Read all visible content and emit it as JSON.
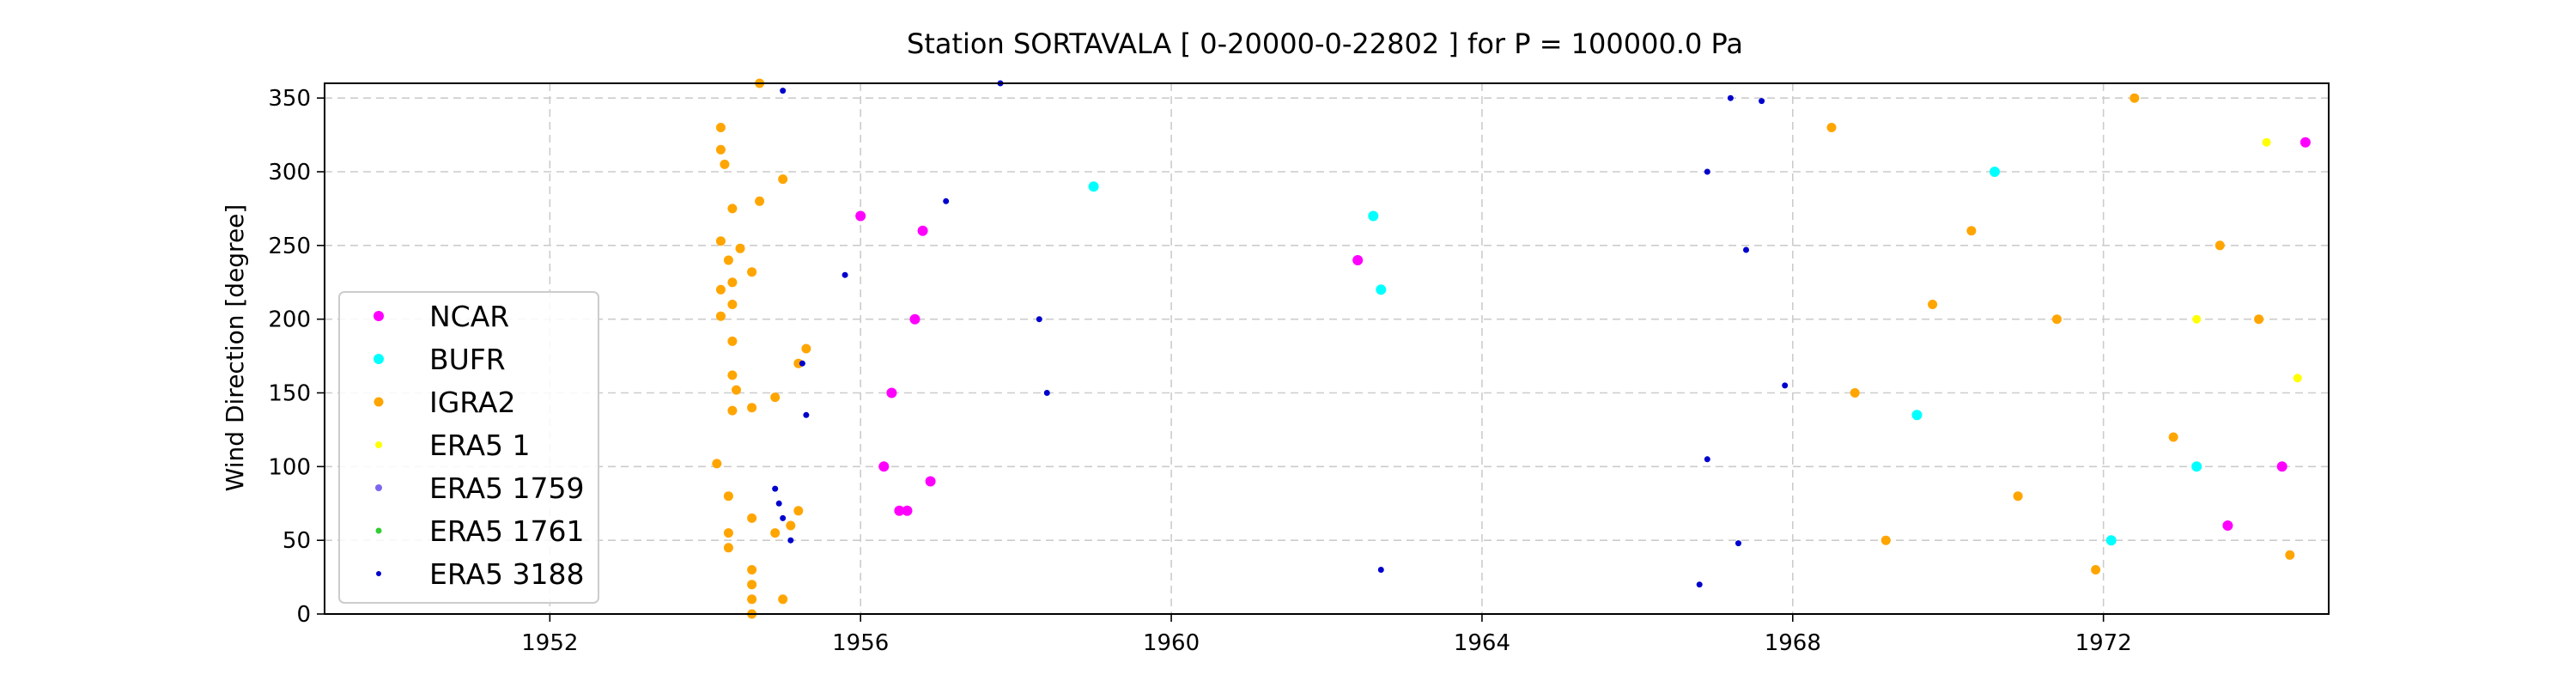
{
  "chart_data": {
    "type": "scatter",
    "title": "Station  SORTAVALA [ 0-20000-0-22802 ]  for P = 100000.0 Pa",
    "xlabel": "",
    "ylabel": "Wind Direction [degree]",
    "xlim": [
      1949.1,
      1974.9
    ],
    "ylim": [
      0,
      360
    ],
    "xticks": [
      1952,
      1956,
      1960,
      1964,
      1968,
      1972
    ],
    "yticks": [
      0,
      50,
      100,
      150,
      200,
      250,
      300,
      350
    ],
    "grid": true,
    "legend_position": "lower-left",
    "series": [
      {
        "name": "NCAR",
        "color": "#ff00ff",
        "points": [
          [
            1956.0,
            270
          ],
          [
            1956.3,
            100
          ],
          [
            1956.4,
            150
          ],
          [
            1956.5,
            70
          ],
          [
            1956.6,
            70
          ],
          [
            1956.7,
            200
          ],
          [
            1956.8,
            260
          ],
          [
            1956.9,
            90
          ],
          [
            1962.4,
            240
          ],
          [
            1973.6,
            60
          ],
          [
            1974.3,
            100
          ],
          [
            1974.6,
            320
          ]
        ]
      },
      {
        "name": "BUFR",
        "color": "#00ffff",
        "points": [
          [
            1959.0,
            290
          ],
          [
            1962.6,
            270
          ],
          [
            1962.7,
            220
          ],
          [
            1969.6,
            135
          ],
          [
            1970.6,
            300
          ],
          [
            1972.1,
            50
          ],
          [
            1973.2,
            100
          ]
        ]
      },
      {
        "name": "IGRA2",
        "color": "#ffa500",
        "points": [
          [
            1954.2,
            330
          ],
          [
            1954.2,
            315
          ],
          [
            1954.25,
            305
          ],
          [
            1954.35,
            275
          ],
          [
            1954.2,
            253
          ],
          [
            1954.3,
            240
          ],
          [
            1954.45,
            248
          ],
          [
            1954.2,
            220
          ],
          [
            1954.35,
            225
          ],
          [
            1954.6,
            232
          ],
          [
            1954.2,
            202
          ],
          [
            1954.35,
            210
          ],
          [
            1954.35,
            185
          ],
          [
            1954.35,
            162
          ],
          [
            1954.35,
            138
          ],
          [
            1954.4,
            152
          ],
          [
            1954.6,
            140
          ],
          [
            1954.9,
            147
          ],
          [
            1955.3,
            180
          ],
          [
            1955.2,
            170
          ],
          [
            1954.7,
            280
          ],
          [
            1955.0,
            295
          ],
          [
            1954.15,
            102
          ],
          [
            1954.3,
            80
          ],
          [
            1954.3,
            55
          ],
          [
            1954.3,
            45
          ],
          [
            1954.6,
            65
          ],
          [
            1954.6,
            30
          ],
          [
            1954.6,
            20
          ],
          [
            1954.6,
            10
          ],
          [
            1954.6,
            0
          ],
          [
            1954.9,
            55
          ],
          [
            1955.1,
            60
          ],
          [
            1955.2,
            70
          ],
          [
            1955.0,
            10
          ],
          [
            1954.7,
            360
          ],
          [
            1968.5,
            330
          ],
          [
            1968.8,
            150
          ],
          [
            1969.2,
            50
          ],
          [
            1969.8,
            210
          ],
          [
            1970.3,
            260
          ],
          [
            1970.9,
            80
          ],
          [
            1971.4,
            200
          ],
          [
            1971.9,
            30
          ],
          [
            1972.4,
            350
          ],
          [
            1972.9,
            120
          ],
          [
            1973.5,
            250
          ],
          [
            1974.0,
            200
          ],
          [
            1974.4,
            40
          ]
        ]
      },
      {
        "name": "ERA5 1",
        "color": "#ffff00",
        "points": [
          [
            1973.2,
            200
          ],
          [
            1974.1,
            320
          ],
          [
            1974.5,
            160
          ]
        ]
      },
      {
        "name": "ERA5 1759",
        "color": "#7b68ee",
        "points": []
      },
      {
        "name": "ERA5 1761",
        "color": "#32cd32",
        "points": []
      },
      {
        "name": "ERA5 3188",
        "color": "#0000cd",
        "points": [
          [
            1955.0,
            355
          ],
          [
            1954.9,
            85
          ],
          [
            1954.95,
            75
          ],
          [
            1955.0,
            65
          ],
          [
            1955.1,
            50
          ],
          [
            1955.3,
            135
          ],
          [
            1955.25,
            170
          ],
          [
            1957.8,
            360
          ],
          [
            1957.1,
            280
          ],
          [
            1955.8,
            230
          ],
          [
            1958.3,
            200
          ],
          [
            1958.4,
            150
          ],
          [
            1966.9,
            300
          ],
          [
            1966.9,
            105
          ],
          [
            1966.8,
            20
          ],
          [
            1967.2,
            350
          ],
          [
            1967.6,
            348
          ],
          [
            1967.4,
            247
          ],
          [
            1967.9,
            155
          ],
          [
            1967.3,
            48
          ],
          [
            1962.7,
            30
          ]
        ]
      }
    ]
  },
  "legend": {
    "entries": [
      {
        "name": "NCAR",
        "color": "#ff00ff"
      },
      {
        "name": "BUFR",
        "color": "#00ffff"
      },
      {
        "name": "IGRA2",
        "color": "#ffa500"
      },
      {
        "name": "ERA5 1",
        "color": "#ffff00"
      },
      {
        "name": "ERA5 1759",
        "color": "#7b68ee"
      },
      {
        "name": "ERA5 1761",
        "color": "#32cd32"
      },
      {
        "name": "ERA5 3188",
        "color": "#0000cd"
      }
    ]
  }
}
